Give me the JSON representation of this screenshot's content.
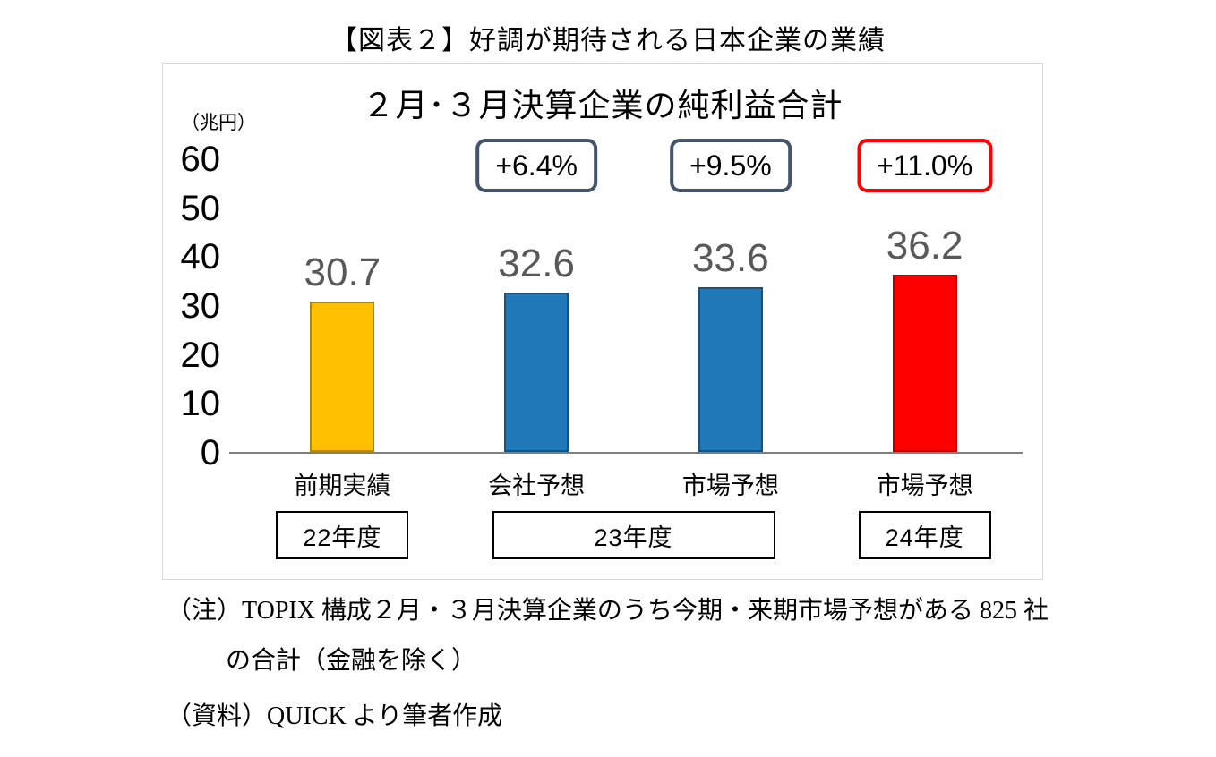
{
  "figure": {
    "title": "【図表２】好調が期待される日本企業の業績"
  },
  "chart_data": {
    "type": "bar",
    "title": "２月･３月決算企業の純利益合計",
    "unit_label": "（兆円）",
    "xlabel": "",
    "ylabel": "兆円",
    "ylim": [
      0,
      60
    ],
    "yticks": [
      60,
      50,
      40,
      30,
      20,
      10,
      0
    ],
    "grid": false,
    "legend": "none",
    "categories": [
      "前期実績",
      "会社予想",
      "市場予想",
      "市場予想"
    ],
    "values": [
      30.7,
      32.6,
      33.6,
      36.2
    ],
    "bar_colors": [
      "#FFC000",
      "#1F78B8",
      "#1F78B8",
      "#FF0000"
    ],
    "growth_badges": [
      {
        "label": "+6.4%",
        "over_bar": 1,
        "border_color": "#44546A"
      },
      {
        "label": "+9.5%",
        "over_bar": 2,
        "border_color": "#44546A"
      },
      {
        "label": "+11.0%",
        "over_bar": 3,
        "border_color": "#FF0000"
      }
    ],
    "year_groups": [
      {
        "label": "22年度",
        "bars": [
          0
        ]
      },
      {
        "label": "23年度",
        "bars": [
          1,
          2
        ]
      },
      {
        "label": "24年度",
        "bars": [
          3
        ]
      }
    ]
  },
  "notes": {
    "line1": "（注）TOPIX 構成２月・３月決算企業のうち今期・来期市場予想がある 825 社",
    "line2": "の合計（金融を除く）",
    "line3": "（資料）QUICK より筆者作成"
  }
}
